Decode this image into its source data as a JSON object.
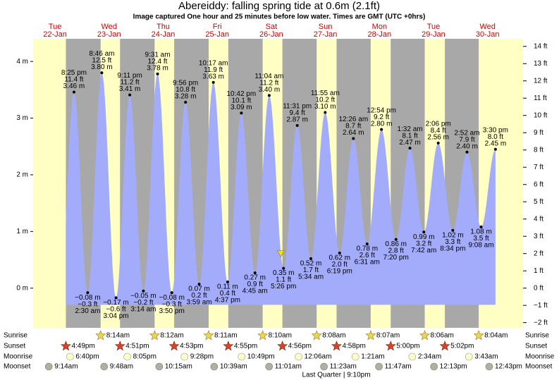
{
  "chart_data": {
    "type": "tide",
    "title": "Abereiddy: falling  spring tide at 0.6m (2.1ft)",
    "subtitle": "Image captured One hour and 25 minutes before low water. Times are GMT (UTC +0hrs)",
    "now_level": 0.6,
    "days": [
      {
        "dow": "Tue",
        "date": "22-Jan"
      },
      {
        "dow": "Wed",
        "date": "23-Jan"
      },
      {
        "dow": "Thu",
        "date": "24-Jan"
      },
      {
        "dow": "Fri",
        "date": "25-Jan"
      },
      {
        "dow": "Sat",
        "date": "26-Jan"
      },
      {
        "dow": "Sun",
        "date": "27-Jan"
      },
      {
        "dow": "Mon",
        "date": "28-Jan"
      },
      {
        "dow": "Tue",
        "date": "29-Jan"
      },
      {
        "dow": "Wed",
        "date": "30-Jan"
      }
    ],
    "ylim": [
      -0.7,
      4.4
    ],
    "yticks": [
      {
        "value": 0,
        "label": "0 m"
      },
      {
        "value": 1,
        "label": "1 m"
      },
      {
        "value": 2,
        "label": "2 m"
      },
      {
        "value": 3,
        "label": "3 m"
      },
      {
        "value": 4,
        "label": "4 m"
      }
    ],
    "y2lim": [
      -2.3,
      14.44
    ],
    "y2ticks": [
      {
        "value": -2,
        "label": "−2 ft"
      },
      {
        "value": -1,
        "label": "−1 ft"
      },
      {
        "value": 0,
        "label": "0 ft"
      },
      {
        "value": 1,
        "label": "1 ft"
      },
      {
        "value": 2,
        "label": "2 ft"
      },
      {
        "value": 3,
        "label": "3 ft"
      },
      {
        "value": 4,
        "label": "4 ft"
      },
      {
        "value": 5,
        "label": "5 ft"
      },
      {
        "value": 6,
        "label": "6 ft"
      },
      {
        "value": 7,
        "label": "7 ft"
      },
      {
        "value": 8,
        "label": "8 ft"
      },
      {
        "value": 9,
        "label": "9 ft"
      },
      {
        "value": 10,
        "label": "10 ft"
      },
      {
        "value": 11,
        "label": "11 ft"
      },
      {
        "value": 12,
        "label": "12 ft"
      },
      {
        "value": 13,
        "label": "13 ft"
      },
      {
        "value": 14,
        "label": "14 ft"
      }
    ],
    "color": "#a3acfb",
    "extremes": [
      {
        "time": "8:25 pm",
        "ft": 11.4,
        "ft_label": "11.4 ft",
        "m": 3.46,
        "m_label": "3.46 m"
      },
      {
        "time": "2:30 am",
        "ft": -0.3,
        "ft_label": "−0.3 ft",
        "m": -0.08,
        "m_label": "−0.08 m"
      },
      {
        "time": "8:46 am",
        "ft": 12.5,
        "ft_label": "12.5 ft",
        "m": 3.8,
        "m_label": "3.80 m"
      },
      {
        "time": "3:04 pm",
        "ft": -0.6,
        "ft_label": "−0.6 ft",
        "m": -0.17,
        "m_label": "−0.17 m"
      },
      {
        "time": "9:11 pm",
        "ft": 11.2,
        "ft_label": "11.2 ft",
        "m": 3.41,
        "m_label": "3.41 m"
      },
      {
        "time": "3:14 am",
        "ft": -0.2,
        "ft_label": "−0.2 ft",
        "m": -0.05,
        "m_label": "−0.05 m"
      },
      {
        "time": "9:31 am",
        "ft": 12.4,
        "ft_label": "12.4 ft",
        "m": 3.78,
        "m_label": "3.78 m"
      },
      {
        "time": "3:50 pm",
        "ft": -0.3,
        "ft_label": "−0.3 ft",
        "m": -0.08,
        "m_label": "−0.08 m"
      },
      {
        "time": "9:56 pm",
        "ft": 10.8,
        "ft_label": "10.8 ft",
        "m": 3.28,
        "m_label": "3.28 m"
      },
      {
        "time": "3:59 am",
        "ft": 0.2,
        "ft_label": "0.2 ft",
        "m": 0.07,
        "m_label": "0.07 m"
      },
      {
        "time": "10:17 am",
        "ft": 11.9,
        "ft_label": "11.9 ft",
        "m": 3.63,
        "m_label": "3.63 m"
      },
      {
        "time": "4:37 pm",
        "ft": 0.4,
        "ft_label": "0.4 ft",
        "m": 0.11,
        "m_label": "0.11 m"
      },
      {
        "time": "10:42 pm",
        "ft": 10.1,
        "ft_label": "10.1 ft",
        "m": 3.09,
        "m_label": "3.09 m"
      },
      {
        "time": "4:45 am",
        "ft": 0.9,
        "ft_label": "0.9 ft",
        "m": 0.27,
        "m_label": "0.27 m"
      },
      {
        "time": "11:04 am",
        "ft": 11.2,
        "ft_label": "11.2 ft",
        "m": 3.4,
        "m_label": "3.40 m"
      },
      {
        "time": "5:26 pm",
        "ft": 1.1,
        "ft_label": "1.1 ft",
        "m": 0.35,
        "m_label": "0.35 m"
      },
      {
        "time": "11:31 pm",
        "ft": 9.4,
        "ft_label": "9.4 ft",
        "m": 2.87,
        "m_label": "2.87 m"
      },
      {
        "time": "5:34 am",
        "ft": 1.7,
        "ft_label": "1.7 ft",
        "m": 0.52,
        "m_label": "0.52 m"
      },
      {
        "time": "11:55 am",
        "ft": 10.2,
        "ft_label": "10.2 ft",
        "m": 3.1,
        "m_label": "3.10 m"
      },
      {
        "time": "6:19 pm",
        "ft": 2.0,
        "ft_label": "2.0 ft",
        "m": 0.62,
        "m_label": "0.62 m"
      },
      {
        "time": "12:26 am",
        "ft": 8.7,
        "ft_label": "8.7 ft",
        "m": 2.64,
        "m_label": "2.64 m"
      },
      {
        "time": "6:31 am",
        "ft": 2.6,
        "ft_label": "2.6 ft",
        "m": 0.78,
        "m_label": "0.78 m"
      },
      {
        "time": "12:54 pm",
        "ft": 9.2,
        "ft_label": "9.2 ft",
        "m": 2.8,
        "m_label": "2.80 m"
      },
      {
        "time": "7:20 pm",
        "ft": 2.8,
        "ft_label": "2.8 ft",
        "m": 0.86,
        "m_label": "0.86 m"
      },
      {
        "time": "1:32 am",
        "ft": 8.1,
        "ft_label": "8.1 ft",
        "m": 2.47,
        "m_label": "2.47 m"
      },
      {
        "time": "7:42 am",
        "ft": 3.2,
        "ft_label": "3.2 ft",
        "m": 0.99,
        "m_label": "0.99 m"
      },
      {
        "time": "2:06 pm",
        "ft": 8.4,
        "ft_label": "8.4 ft",
        "m": 2.56,
        "m_label": "2.56 m"
      },
      {
        "time": "8:34 pm",
        "ft": 3.3,
        "ft_label": "3.3 ft",
        "m": 1.02,
        "m_label": "1.02 m"
      },
      {
        "time": "2:52 am",
        "ft": 7.9,
        "ft_label": "7.9 ft",
        "m": 2.4,
        "m_label": "2.40 m"
      },
      {
        "time": "9:08 am",
        "ft": 3.5,
        "ft_label": "3.5 ft",
        "m": 1.08,
        "m_label": "1.08 m"
      },
      {
        "time": "3:30 pm",
        "ft": 8.0,
        "ft_label": "8.0 ft",
        "m": 2.45,
        "m_label": "2.45 m"
      }
    ],
    "events": [
      {
        "name": "Sunrise",
        "times": [
          null,
          "8:14am",
          "8:12am",
          "8:11am",
          "8:10am",
          "8:08am",
          "8:07am",
          "8:06am",
          "8:04am"
        ]
      },
      {
        "name": "Sunset",
        "times": [
          "4:49pm",
          "4:51pm",
          "4:53pm",
          "4:55pm",
          "4:56pm",
          "4:58pm",
          "5:00pm",
          "5:02pm",
          null
        ]
      },
      {
        "name": "Moonrise",
        "times": [
          "6:40pm",
          "8:05pm",
          "9:28pm",
          "10:49pm",
          null,
          "12:06am",
          "1:21am",
          "2:34am",
          "3:43am"
        ]
      },
      {
        "name": "Moonset",
        "times": [
          "9:14am",
          "9:48am",
          "10:15am",
          "10:39am",
          "11:01am",
          "11:23am",
          "11:47am",
          "12:13pm",
          "12:43pm"
        ]
      }
    ],
    "moon_phase": "Last Quarter | 9:10pm"
  }
}
